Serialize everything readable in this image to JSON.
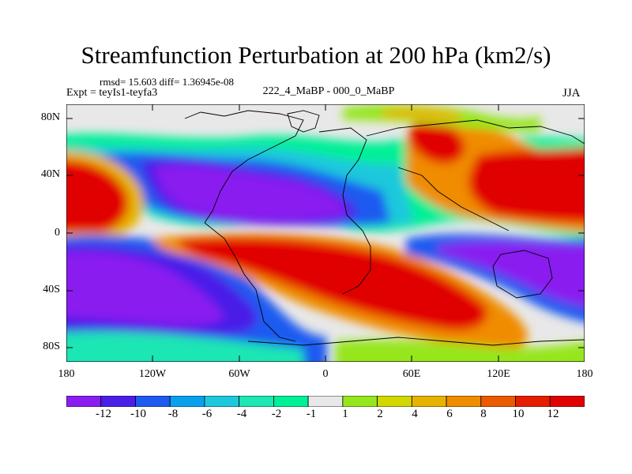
{
  "title": "Streamfunction Perturbation at 200 hPa (km2/s)",
  "stats": "rmsd= 15.603 diff= 1.36945e-08",
  "expt": "Expt = teyIs1-teyfa3",
  "center_label": "222_4_MaBP - 000_0_MaBP",
  "season": "JJA",
  "y_axis": {
    "labels": [
      "80N",
      "40N",
      "0",
      "40S",
      "80S"
    ]
  },
  "x_axis": {
    "labels": [
      "180",
      "120W",
      "60W",
      "0",
      "60E",
      "120E",
      "180"
    ]
  },
  "colorbar": {
    "labels": [
      "-12",
      "-10",
      "-8",
      "-6",
      "-4",
      "-2",
      "-1",
      "1",
      "2",
      "4",
      "6",
      "8",
      "10",
      "12"
    ],
    "colors": [
      "#8a1ef0",
      "#4a1ee8",
      "#1e5af0",
      "#0aa0ee",
      "#1ec8dc",
      "#1ee6b4",
      "#00f096",
      "#e8e8e8",
      "#96e61e",
      "#d2d700",
      "#e6b400",
      "#f08c00",
      "#ec5a00",
      "#e61e00",
      "#e10000"
    ]
  }
}
